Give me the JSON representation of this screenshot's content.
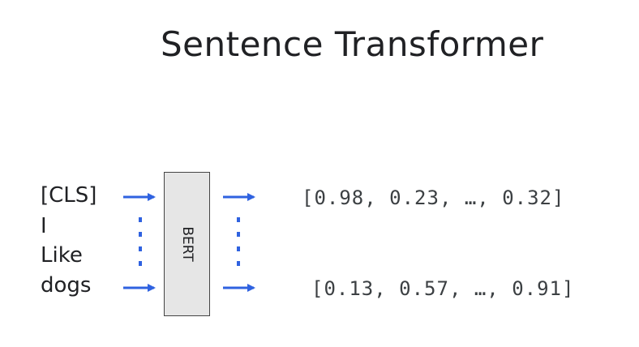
{
  "title": "Sentence Transformer",
  "tokens": [
    "[CLS]",
    "I",
    "Like",
    "dogs"
  ],
  "model_label": "BERT",
  "outputs": [
    "[0.98, 0.23, …, 0.32]",
    "[0.13, 0.57, …, 0.91]"
  ],
  "colors": {
    "arrow": "#2f62e0",
    "box_fill": "#e6e6e6",
    "box_border": "#444444",
    "text": "#202124"
  }
}
